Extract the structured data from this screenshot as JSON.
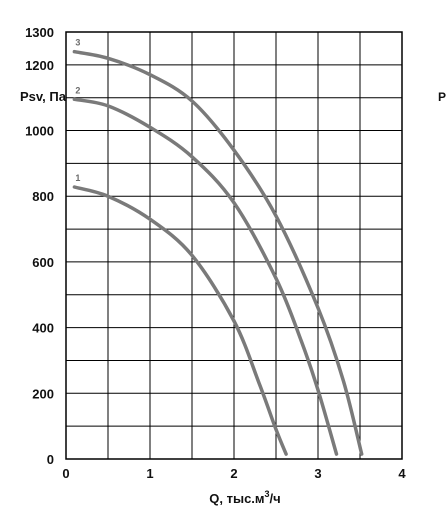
{
  "chart_data": {
    "type": "line",
    "xlabel_main": "Q, тыс.м",
    "xlabel_sup": "3",
    "xlabel_tail": "/ч",
    "ylabel": "Psv, Па",
    "xlim": [
      0,
      4
    ],
    "ylim": [
      0,
      1300
    ],
    "x_ticks": [
      0,
      1,
      2,
      3,
      4
    ],
    "y_ticks": [
      0,
      200,
      400,
      600,
      800,
      1000,
      1200,
      1300
    ],
    "x_minor_step": 0.5,
    "y_minor_step": 100,
    "grid": true,
    "line_color": "#7a7a7a",
    "series": [
      {
        "label": "1",
        "x": [
          0.1,
          0.5,
          1.0,
          1.5,
          2.0,
          2.3,
          2.5,
          2.62
        ],
        "y": [
          828,
          800,
          730,
          620,
          420,
          230,
          90,
          15
        ]
      },
      {
        "label": "2",
        "x": [
          0.1,
          0.5,
          1.0,
          1.5,
          2.0,
          2.5,
          2.8,
          3.0,
          3.22
        ],
        "y": [
          1095,
          1075,
          1010,
          920,
          780,
          550,
          360,
          210,
          15
        ]
      },
      {
        "label": "3",
        "x": [
          0.1,
          0.5,
          1.0,
          1.5,
          2.0,
          2.5,
          3.0,
          3.3,
          3.52
        ],
        "y": [
          1240,
          1220,
          1170,
          1090,
          940,
          740,
          460,
          240,
          15
        ]
      }
    ]
  },
  "edge_text": "P"
}
